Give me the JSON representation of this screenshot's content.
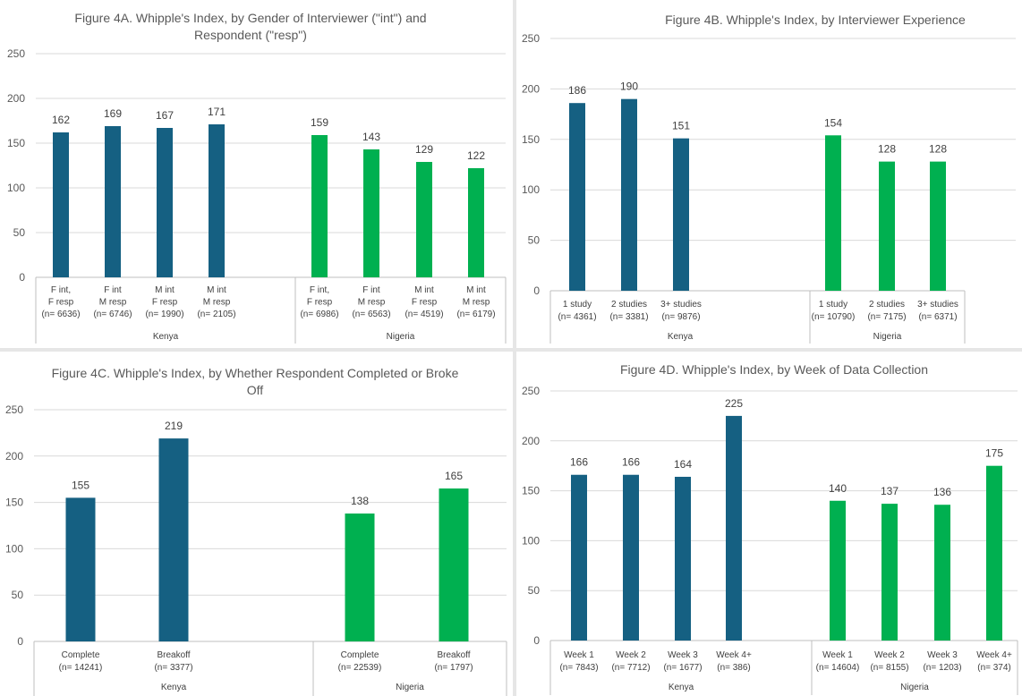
{
  "colors": {
    "kenya": "#156082",
    "nigeria": "#00B050",
    "grid": "#d9d9d9",
    "axis": "#bfbfbf"
  },
  "chart_data": [
    {
      "id": "4A",
      "type": "bar",
      "title": "Figure 4A. Whipple's Index, by Gender of Interviewer (\"int\") and Respondent (\"resp\")",
      "title_lines": [
        "Figure 4A. Whipple's Index, by Gender of Interviewer (\"int\") and",
        "Respondent (\"resp\")"
      ],
      "ylim": [
        0,
        250
      ],
      "yticks": [
        "0",
        "50",
        "100",
        "150",
        "200",
        "250"
      ],
      "grid": true,
      "groups": [
        {
          "name": "Kenya",
          "color": "kenya",
          "categories": [
            [
              "F int,",
              "F resp",
              "(n= 6636)"
            ],
            [
              "F int",
              "M resp",
              "(n= 6746)"
            ],
            [
              "M int",
              "F resp",
              "(n= 1990)"
            ],
            [
              "M int",
              "M resp",
              "(n= 2105)"
            ]
          ],
          "values": [
            162,
            169,
            167,
            171
          ]
        },
        {
          "name": "Nigeria",
          "color": "nigeria",
          "categories": [
            [
              "F int,",
              "F resp",
              "(n= 6986)"
            ],
            [
              "F int",
              "M resp",
              "(n= 6563)"
            ],
            [
              "M int",
              "F resp",
              "(n= 4519)"
            ],
            [
              "M int",
              "M resp",
              "(n= 6179)"
            ]
          ],
          "values": [
            159,
            143,
            129,
            122
          ]
        }
      ]
    },
    {
      "id": "4B",
      "type": "bar",
      "title": "Figure 4B. Whipple's Index, by Interviewer Experience",
      "title_lines": [
        "Figure 4B. Whipple's Index, by Interviewer Experience"
      ],
      "ylim": [
        0,
        250
      ],
      "yticks": [
        "0",
        "50",
        "100",
        "150",
        "200",
        "250"
      ],
      "grid": true,
      "groups": [
        {
          "name": "Kenya",
          "color": "kenya",
          "categories": [
            [
              "1 study",
              "(n= 4361)"
            ],
            [
              "2 studies",
              "(n= 3381)"
            ],
            [
              "3+ studies",
              "(n= 9876)"
            ]
          ],
          "values": [
            186,
            190,
            151
          ]
        },
        {
          "name": "Nigeria",
          "color": "nigeria",
          "categories": [
            [
              "1 study",
              "(n= 10790)"
            ],
            [
              "2 studies",
              "(n= 7175)"
            ],
            [
              "3+ studies",
              "(n= 6371)"
            ]
          ],
          "values": [
            154,
            128,
            128
          ]
        }
      ]
    },
    {
      "id": "4C",
      "type": "bar",
      "title": "Figure 4C. Whipple's Index, by Whether Respondent Completed or Broke Off",
      "title_lines": [
        "Figure 4C. Whipple's Index, by Whether Respondent Completed or Broke",
        "Off"
      ],
      "ylim": [
        0,
        250
      ],
      "yticks": [
        "0",
        "50",
        "100",
        "150",
        "200",
        "250"
      ],
      "grid": true,
      "groups": [
        {
          "name": "Kenya",
          "color": "kenya",
          "categories": [
            [
              "Complete",
              "(n= 14241)"
            ],
            [
              "Breakoff",
              "(n= 3377)"
            ]
          ],
          "values": [
            155,
            219
          ]
        },
        {
          "name": "Nigeria",
          "color": "nigeria",
          "categories": [
            [
              "Complete",
              "(n= 22539)"
            ],
            [
              "Breakoff",
              "(n= 1797)"
            ]
          ],
          "values": [
            138,
            165
          ]
        }
      ]
    },
    {
      "id": "4D",
      "type": "bar",
      "title": "Figure 4D. Whipple's Index, by Week of Data Collection",
      "title_lines": [
        "Figure 4D. Whipple's Index, by Week of Data Collection"
      ],
      "ylim": [
        0,
        250
      ],
      "yticks": [
        "0",
        "50",
        "100",
        "150",
        "200",
        "250"
      ],
      "grid": true,
      "groups": [
        {
          "name": "Kenya",
          "color": "kenya",
          "categories": [
            [
              "Week 1",
              "(n= 7843)"
            ],
            [
              "Week 2",
              "(n= 7712)"
            ],
            [
              "Week 3",
              "(n= 1677)"
            ],
            [
              "Week 4+",
              "(n= 386)"
            ]
          ],
          "values": [
            166,
            166,
            164,
            225
          ]
        },
        {
          "name": "Nigeria",
          "color": "nigeria",
          "categories": [
            [
              "Week 1",
              "(n= 14604)"
            ],
            [
              "Week 2",
              "(n= 8155)"
            ],
            [
              "Week 3",
              "(n= 1203)"
            ],
            [
              "Week 4+",
              "(n= 374)"
            ]
          ],
          "values": [
            140,
            137,
            136,
            175
          ]
        }
      ]
    }
  ]
}
